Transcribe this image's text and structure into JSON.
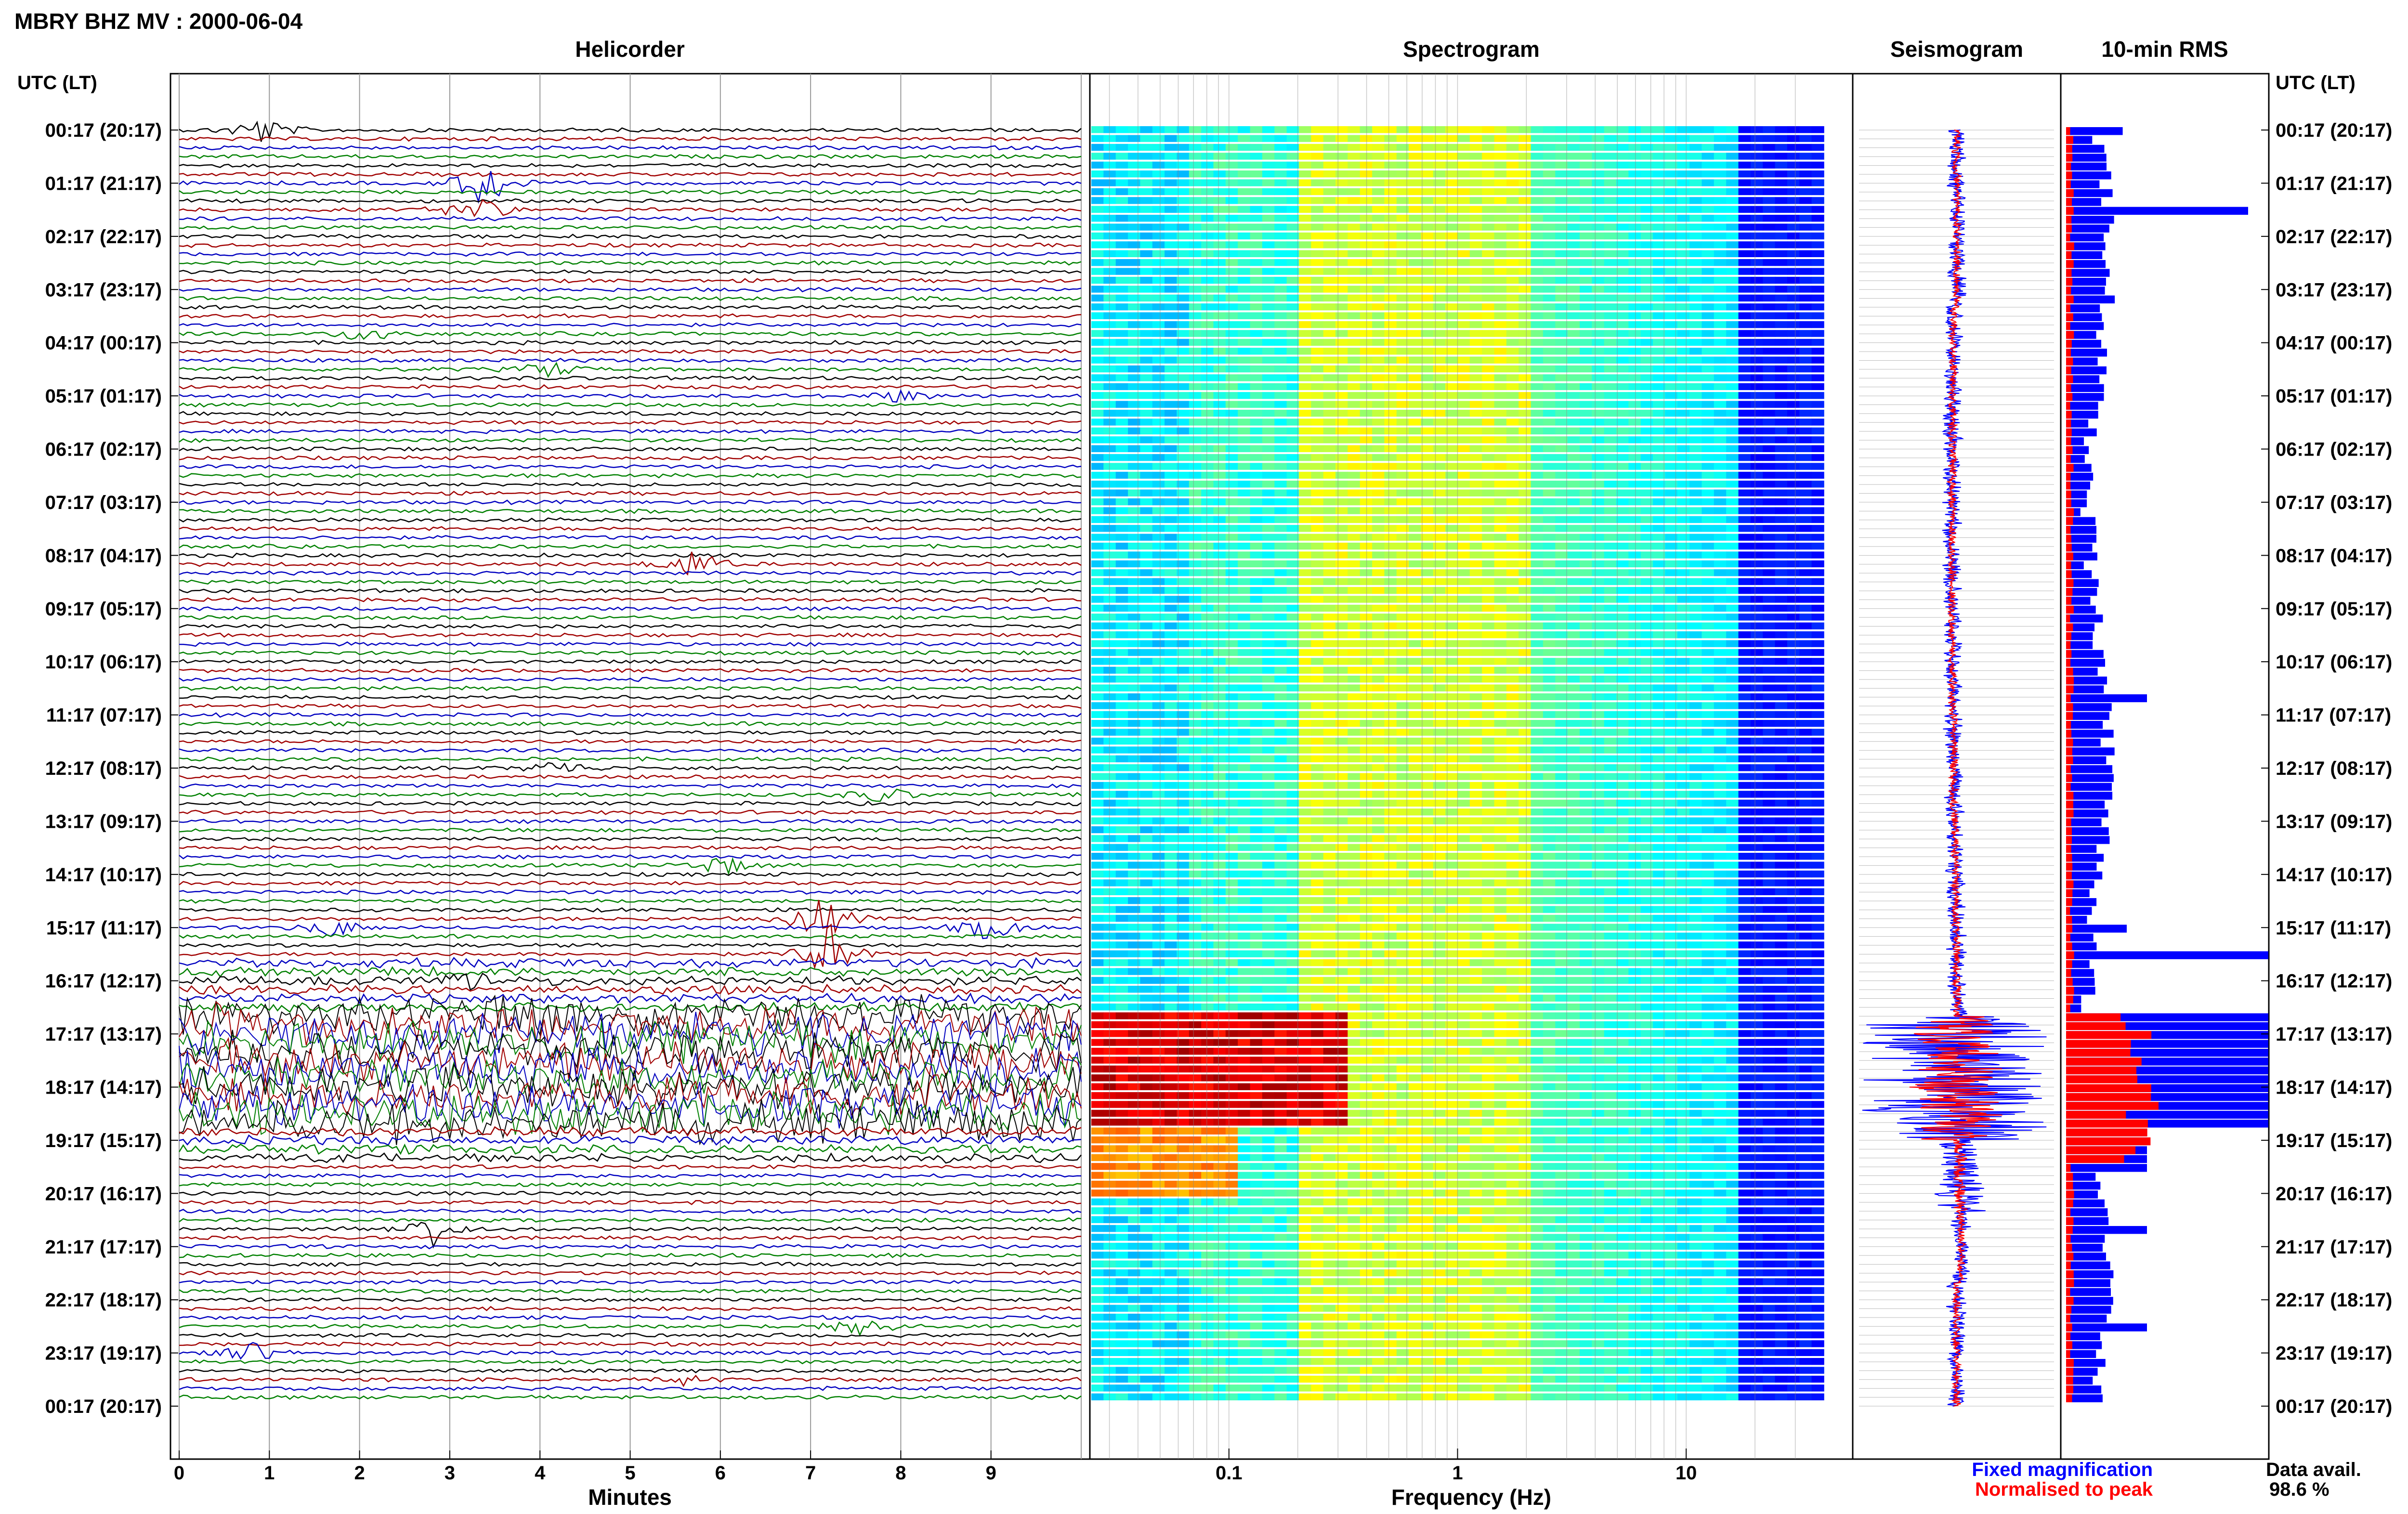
{
  "header": {
    "title": "MBRY BHZ MV : 2000-06-04",
    "utc_label": "UTC (LT)",
    "utc_label_right": "UTC (LT)"
  },
  "panels": {
    "helicorder": "Helicorder",
    "spectrogram": "Spectrogram",
    "seismogram": "Seismogram",
    "rms": "10-min RMS"
  },
  "axes": {
    "helicorder_xlabel": "Minutes",
    "helicorder_ticks": [
      "0",
      "1",
      "2",
      "3",
      "4",
      "5",
      "6",
      "7",
      "8",
      "9"
    ],
    "spectrogram_xlabel": "Frequency (Hz)",
    "spectrogram_ticks": [
      "0.1",
      "1",
      "10"
    ]
  },
  "time_labels": [
    "00:17 (20:17)",
    "01:17 (21:17)",
    "02:17 (22:17)",
    "03:17 (23:17)",
    "04:17 (00:17)",
    "05:17 (01:17)",
    "06:17 (02:17)",
    "07:17 (03:17)",
    "08:17 (04:17)",
    "09:17 (05:17)",
    "10:17 (06:17)",
    "11:17 (07:17)",
    "12:17 (08:17)",
    "13:17 (09:17)",
    "14:17 (10:17)",
    "15:17 (11:17)",
    "16:17 (12:17)",
    "17:17 (13:17)",
    "18:17 (14:17)",
    "19:17 (15:17)",
    "20:17 (16:17)",
    "21:17 (17:17)",
    "22:17 (18:17)",
    "23:17 (19:17)",
    "00:17 (20:17)"
  ],
  "legend": {
    "fixed": "Fixed magnification",
    "normalised": "Normalised to peak",
    "fixed_color": "#0000ff",
    "normalised_color": "#ff0000"
  },
  "availability": {
    "label": "Data avail.",
    "value": "98.6 %"
  },
  "colors": {
    "trace_colors": [
      "#000000",
      "#a00000",
      "#0000c0",
      "#008000"
    ],
    "bar_fixed": "#0000ff",
    "bar_normalised": "#ff0000"
  },
  "chart_data": [
    {
      "type": "line",
      "title": "Helicorder",
      "xlabel": "Minutes",
      "xlim": [
        0,
        10
      ],
      "rows": 144,
      "minutes_per_row": 10,
      "events": [
        {
          "row": 0,
          "minute": 0.9,
          "strength": 0.8
        },
        {
          "row": 6,
          "minute": 3.4,
          "strength": 1.6
        },
        {
          "row": 9,
          "minute": 3.3,
          "strength": 0.9
        },
        {
          "row": 23,
          "minute": 2.1,
          "strength": 0.6
        },
        {
          "row": 27,
          "minute": 4.1,
          "strength": 0.5
        },
        {
          "row": 30,
          "minute": 8.0,
          "strength": 0.4
        },
        {
          "row": 49,
          "minute": 5.7,
          "strength": 0.9
        },
        {
          "row": 72,
          "minute": 4.2,
          "strength": 0.5
        },
        {
          "row": 75,
          "minute": 7.8,
          "strength": 0.5
        },
        {
          "row": 83,
          "minute": 6.0,
          "strength": 0.6
        },
        {
          "row": 89,
          "minute": 7.1,
          "strength": 1.4
        },
        {
          "row": 90,
          "minute": 1.7,
          "strength": 0.6
        },
        {
          "row": 90,
          "minute": 9.0,
          "strength": 0.8
        },
        {
          "row": 93,
          "minute": 7.2,
          "strength": 1.8
        },
        {
          "row": 96,
          "minute": 3.3,
          "strength": 0.4
        },
        {
          "row": 124,
          "minute": 2.8,
          "strength": 1.0
        },
        {
          "row": 135,
          "minute": 7.5,
          "strength": 0.9
        },
        {
          "row": 138,
          "minute": 0.8,
          "strength": 0.6
        },
        {
          "row": 141,
          "minute": 5.6,
          "strength": 0.3
        }
      ],
      "tremor_rows": [
        100,
        112
      ]
    },
    {
      "type": "heatmap",
      "title": "Spectrogram",
      "xlabel": "Frequency (Hz)",
      "xscale": "log",
      "xlim": [
        0.025,
        40
      ],
      "rows": 144,
      "high_energy_rows": [
        100,
        112
      ],
      "colormap": "jet"
    },
    {
      "type": "line",
      "title": "Seismogram",
      "series": [
        {
          "name": "Fixed magnification",
          "color": "#0000ff"
        },
        {
          "name": "Normalised to peak",
          "color": "#ff0000"
        }
      ],
      "peak_rows": [
        100,
        112
      ]
    },
    {
      "type": "bar",
      "title": "10-min RMS",
      "orientation": "horizontal",
      "rows": 144,
      "series": [
        {
          "name": "Fixed magnification",
          "color": "#0000ff"
        },
        {
          "name": "Normalised to peak",
          "color": "#ff0000"
        }
      ],
      "rms_peaks": [
        {
          "row": 0,
          "value": 0.28
        },
        {
          "row": 9,
          "value": 0.9
        },
        {
          "row": 27,
          "value": 0.2
        },
        {
          "row": 45,
          "value": 0.15
        },
        {
          "row": 46,
          "value": 0.15
        },
        {
          "row": 64,
          "value": 0.4
        },
        {
          "row": 90,
          "value": 0.3
        },
        {
          "row": 93,
          "value": 1.0
        },
        {
          "row": 124,
          "value": 0.4
        },
        {
          "row": 135,
          "value": 0.4
        }
      ],
      "tremor_rows": [
        100,
        112
      ],
      "data_availability_percent": 98.6
    }
  ]
}
